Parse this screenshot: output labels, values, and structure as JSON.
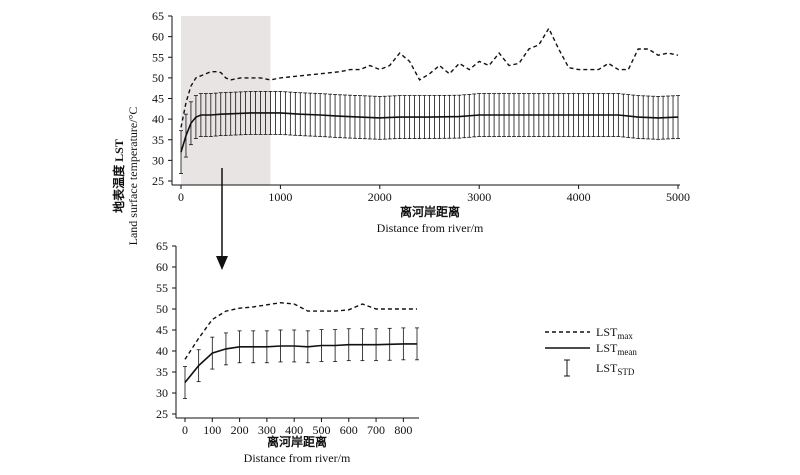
{
  "chart_data": [
    {
      "type": "line",
      "xlabel_cn": "离河岸距离",
      "xlabel": "Distance from river/m",
      "xlim": [
        0,
        5000
      ],
      "ylim": [
        25,
        65
      ],
      "xticks": [
        "0",
        "1000",
        "2000",
        "3000",
        "4000",
        "5000"
      ],
      "yticks": [
        "25",
        "30",
        "35",
        "40",
        "45",
        "50",
        "55",
        "60",
        "65"
      ],
      "highlight_range": [
        0,
        900
      ],
      "series": [
        {
          "key": "lst_max",
          "style": "dashed",
          "x": [
            0,
            50,
            100,
            150,
            200,
            250,
            300,
            350,
            400,
            450,
            500,
            600,
            700,
            800,
            900,
            1000,
            1200,
            1400,
            1600,
            1700,
            1800,
            1900,
            2000,
            2100,
            2200,
            2300,
            2400,
            2500,
            2600,
            2700,
            2800,
            2900,
            3000,
            3100,
            3200,
            3300,
            3400,
            3500,
            3600,
            3700,
            3800,
            3900,
            4000,
            4100,
            4200,
            4300,
            4400,
            4500,
            4600,
            4700,
            4800,
            4900,
            5000
          ],
          "y": [
            38,
            44,
            48,
            50,
            50.5,
            51,
            51.5,
            51.5,
            51.3,
            50,
            49.5,
            50,
            50,
            50,
            49.5,
            50,
            50.5,
            51,
            51.5,
            52,
            52,
            53,
            52,
            53,
            56,
            54,
            49.5,
            51,
            53,
            51,
            53.5,
            52,
            54,
            53,
            56,
            53,
            53.5,
            57,
            58,
            62,
            57,
            52.5,
            52,
            52,
            52,
            53.5,
            52,
            52,
            57,
            57,
            55.5,
            56,
            55.5
          ]
        },
        {
          "key": "lst_mean",
          "style": "solid",
          "x": [
            0,
            50,
            100,
            150,
            200,
            250,
            300,
            400,
            500,
            700,
            900,
            1000,
            1200,
            1400,
            1600,
            1800,
            2000,
            2200,
            2500,
            2800,
            3000,
            3200,
            3400,
            3600,
            3800,
            4000,
            4200,
            4400,
            4600,
            4800,
            5000
          ],
          "y": [
            32,
            36,
            39,
            40.5,
            41,
            41,
            41,
            41.2,
            41.3,
            41.5,
            41.5,
            41.5,
            41.2,
            41,
            40.7,
            40.5,
            40.3,
            40.5,
            40.5,
            40.6,
            41,
            41,
            41,
            41,
            41,
            41,
            41,
            41,
            40.5,
            40.3,
            40.5
          ]
        },
        {
          "key": "lst_std",
          "type": "errorbar",
          "center": "lst_mean",
          "halfwidth": 5.2,
          "step": 50
        }
      ]
    },
    {
      "type": "line",
      "xlabel_cn": "离河岸距离",
      "xlabel": "Distance from river/m",
      "xlim": [
        0,
        850
      ],
      "ylim": [
        25,
        65
      ],
      "xticks": [
        "0",
        "100",
        "200",
        "300",
        "400",
        "500",
        "600",
        "700",
        "800"
      ],
      "yticks": [
        "25",
        "30",
        "35",
        "40",
        "45",
        "50",
        "55",
        "60",
        "65"
      ],
      "series": [
        {
          "key": "lst_max",
          "style": "dashed",
          "x": [
            0,
            50,
            100,
            150,
            200,
            250,
            300,
            350,
            400,
            450,
            500,
            550,
            600,
            650,
            700,
            750,
            800,
            850
          ],
          "y": [
            38,
            43,
            47.5,
            49.5,
            50.2,
            50.5,
            51,
            51.5,
            51.2,
            49.5,
            49.5,
            49.5,
            49.8,
            51.2,
            50,
            50,
            50,
            50
          ]
        },
        {
          "key": "lst_mean",
          "style": "solid",
          "x": [
            0,
            50,
            100,
            150,
            200,
            250,
            300,
            350,
            400,
            450,
            500,
            550,
            600,
            650,
            700,
            750,
            800,
            850
          ],
          "y": [
            32.5,
            36.5,
            39.5,
            40.5,
            41,
            41,
            41,
            41.2,
            41.2,
            41,
            41.3,
            41.3,
            41.5,
            41.5,
            41.5,
            41.6,
            41.7,
            41.7
          ]
        },
        {
          "key": "lst_std",
          "type": "errorbar",
          "center": "lst_mean",
          "halfwidth": 3.8,
          "step": 50
        }
      ]
    }
  ],
  "ylabel_cn": "地表温度 LST",
  "ylabel": "Land surface temperature/°C",
  "legend": {
    "items": [
      {
        "key": "lst_max",
        "base": "LST",
        "sub": "max",
        "style": "dashed"
      },
      {
        "key": "lst_mean",
        "base": "LST",
        "sub": "mean",
        "style": "solid"
      },
      {
        "key": "lst_std",
        "base": "LST",
        "sub": "STD",
        "style": "errorbar"
      }
    ]
  },
  "colors": {
    "line": "#111111",
    "highlight": "#e8e4e4"
  }
}
